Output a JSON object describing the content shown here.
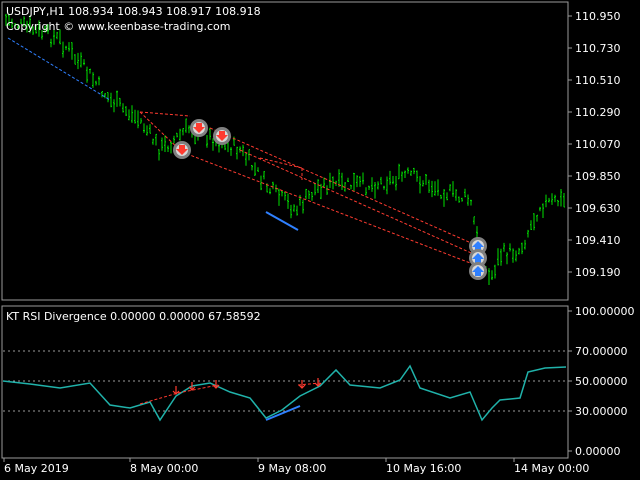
{
  "main_chart": {
    "header": "USDJPY,H1  108.934 108.943 108.917 108.918",
    "copyright": "Copyright © www.keenbase-trading.com",
    "price_ticks": [
      "110.950",
      "110.730",
      "110.510",
      "110.290",
      "110.070",
      "109.850",
      "109.630",
      "109.410",
      "109.190"
    ],
    "colors": {
      "bull": "#00e000",
      "bear_line": "#ff3b30",
      "bull_line": "#2f80ff",
      "marker_bg": "#808080"
    }
  },
  "indicator": {
    "header": "KT RSI Divergence 0.00000 0.00000 67.58592",
    "levels": [
      "100.00000",
      "70.00000",
      "50.00000",
      "30.00000",
      "0.00000"
    ],
    "line_color": "#20b2aa"
  },
  "time_axis": {
    "labels": [
      "6 May 2019",
      "8 May 00:00",
      "9 May 08:00",
      "10 May 16:00",
      "14 May 00:00"
    ]
  },
  "markers": [
    {
      "type": "sell",
      "icon": "arrow-down-icon"
    },
    {
      "type": "sell",
      "icon": "arrow-down-icon"
    },
    {
      "type": "sell",
      "icon": "arrow-down-icon"
    },
    {
      "type": "buy",
      "icon": "arrow-up-icon"
    },
    {
      "type": "buy",
      "icon": "arrow-up-icon"
    }
  ]
}
